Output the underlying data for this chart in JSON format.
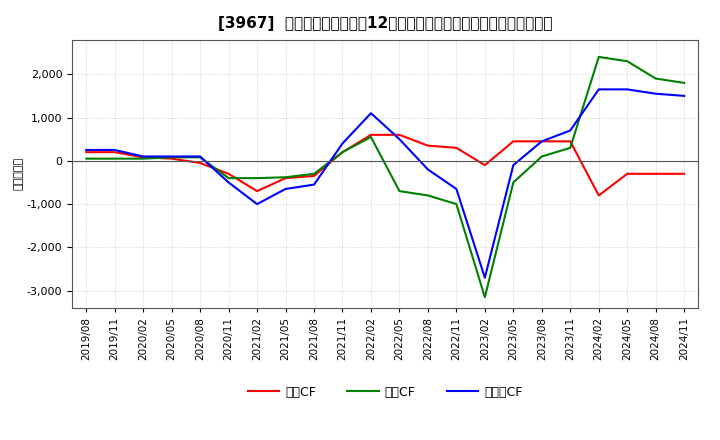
{
  "title": "[3967]  キャッシュフローの12か月移動合計の対前年同期増減額の推移",
  "ylabel": "（百万円）",
  "x_labels": [
    "2019/08",
    "2019/11",
    "2020/02",
    "2020/05",
    "2020/08",
    "2020/11",
    "2021/02",
    "2021/05",
    "2021/08",
    "2021/11",
    "2022/02",
    "2022/05",
    "2022/08",
    "2022/11",
    "2023/02",
    "2023/05",
    "2023/08",
    "2023/11",
    "2024/02",
    "2024/05",
    "2024/08",
    "2024/11"
  ],
  "operating_cf": [
    200,
    200,
    80,
    50,
    -50,
    -300,
    -700,
    -400,
    -350,
    200,
    600,
    600,
    350,
    300,
    -100,
    450,
    450,
    450,
    -800,
    -300,
    -300,
    -300
  ],
  "investing_cf": [
    50,
    50,
    50,
    80,
    80,
    -400,
    -400,
    -380,
    -300,
    200,
    550,
    -700,
    -800,
    -1000,
    -3150,
    -500,
    100,
    300,
    2400,
    2300,
    1900,
    1800
  ],
  "free_cf": [
    250,
    250,
    100,
    100,
    100,
    -500,
    -1000,
    -650,
    -550,
    400,
    1100,
    500,
    -200,
    -650,
    -2700,
    -100,
    450,
    700,
    1650,
    1650,
    1550,
    1500
  ],
  "operating_color": "#ff0000",
  "investing_color": "#008000",
  "free_color": "#0000ff",
  "ylim": [
    -3400,
    2800
  ],
  "yticks": [
    -3000,
    -2000,
    -1000,
    0,
    1000,
    2000
  ],
  "background_color": "#ffffff",
  "grid_color": "#aaaaaa",
  "title_fontsize": 11,
  "axis_fontsize": 9,
  "legend_labels": [
    "営業CF",
    "投資CF",
    "フリーCF"
  ]
}
